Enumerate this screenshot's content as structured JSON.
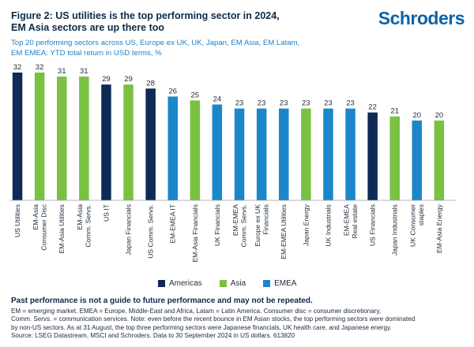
{
  "header": {
    "title_line1": "Figure 2: US utilities is the top performing sector in 2024,",
    "title_line2": "EM Asia sectors are up there too",
    "subtitle_line1": "Top 20 performing sectors across US, Europe ex UK, UK, Japan, EM Asia, EM Latam,",
    "subtitle_line2": "EM EMEA: YTD total return in USD terms, %",
    "logo": "Schroders"
  },
  "colors": {
    "Americas": "#0f2a56",
    "Asia": "#7ac143",
    "EMEA": "#1b87c9"
  },
  "legend": [
    {
      "label": "Americas",
      "key": "Americas"
    },
    {
      "label": "Asia",
      "key": "Asia"
    },
    {
      "label": "EMEA",
      "key": "EMEA"
    }
  ],
  "chart_data": {
    "type": "bar",
    "title": "",
    "xlabel": "",
    "ylabel": "",
    "ylim": [
      0,
      32
    ],
    "grid": false,
    "legend_position": "bottom",
    "categories": [
      "US Utilities",
      "EM-Asia Consumer Disc",
      "EM-Asia Utilities",
      "EM-Asia Comm. Servs.",
      "US IT",
      "Japan Financials",
      "US Comm. Servs.",
      "EM-EMEA IT",
      "EM-Asia Financials",
      "UK Financials",
      "EM-EMEA Comm. Servs.",
      "Europe ex UK Financials",
      "EM-EMEA Utilities",
      "Japan Energy",
      "UK Industrials",
      "EM-EMEA Real estate",
      "US Financials",
      "Japan Industrials",
      "UK Consumer staples",
      "EM-Asia Energy"
    ],
    "label_lines": [
      [
        "US Utilities"
      ],
      [
        "EM-Asia",
        "Consumer Disc"
      ],
      [
        "EM-Asia Utilities"
      ],
      [
        "EM-Asia",
        "Comm. Servs."
      ],
      [
        "US IT"
      ],
      [
        "Japan Financials"
      ],
      [
        "US Comm. Servs."
      ],
      [
        "EM-EMEA IT"
      ],
      [
        "EM-Asia Financials"
      ],
      [
        "UK Financials"
      ],
      [
        "EM-EMEA",
        "Comm. Servs."
      ],
      [
        "Europe ex UK",
        "Financials"
      ],
      [
        "EM-EMEA Utilities"
      ],
      [
        "Japan Energy"
      ],
      [
        "UK Industrials"
      ],
      [
        "EM-EMEA",
        "Real estate"
      ],
      [
        "US Financials"
      ],
      [
        "Japan Industrials"
      ],
      [
        "UK Consumer",
        "staples"
      ],
      [
        "EM-Asia Energy"
      ]
    ],
    "values": [
      32,
      32,
      31,
      31,
      29,
      29,
      28,
      26,
      25,
      24,
      23,
      23,
      23,
      23,
      23,
      23,
      22,
      21,
      20,
      20
    ],
    "regions": [
      "Americas",
      "Asia",
      "Asia",
      "Asia",
      "Americas",
      "Asia",
      "Americas",
      "EMEA",
      "Asia",
      "EMEA",
      "EMEA",
      "EMEA",
      "EMEA",
      "Asia",
      "EMEA",
      "EMEA",
      "Americas",
      "Asia",
      "EMEA",
      "Asia"
    ]
  },
  "footer": {
    "disclaimer": "Past performance is not a guide to future performance and may not be repeated.",
    "note_line1": "EM = emerging market. EMEA = Europe, Middle-East and Africa, Latam = Latin America. Consumer disc = consumer discretionary,",
    "note_line2": "Comm. Servs. = communication services. Note: even before the recent bounce in EM Asian stocks, the top performing sectors were dominated",
    "note_line3": "by non-US sectors. As at 31 August, the top three performing sectors were Japanese financials, UK health care, and Japanese energy.",
    "source": "Source: LSEG Datastream, MSCI and Schroders. Data to 30 September 2024 in US dollars. 613820"
  }
}
